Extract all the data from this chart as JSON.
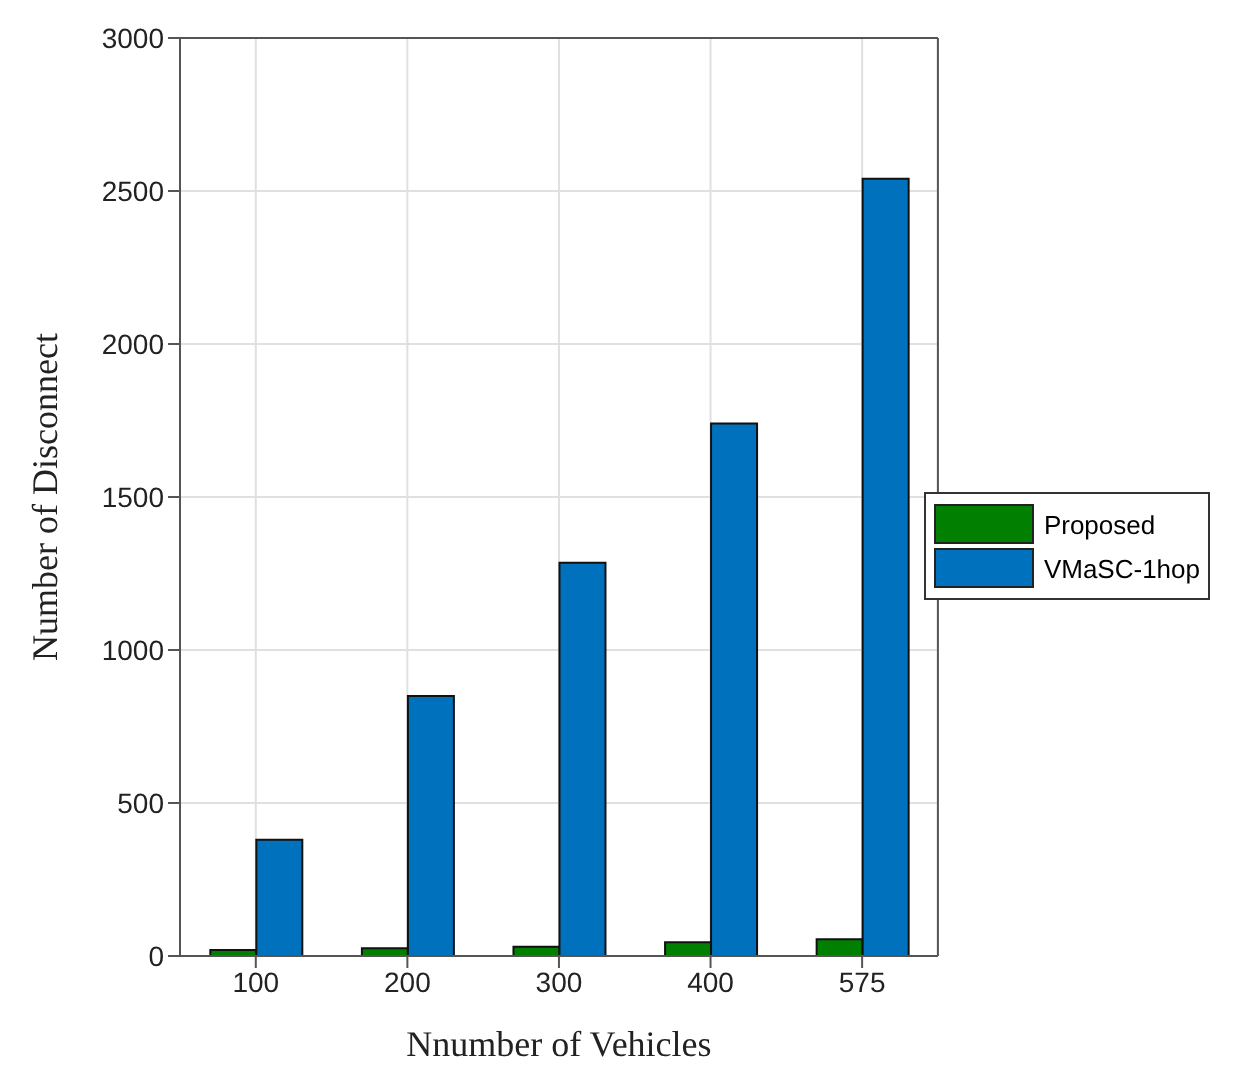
{
  "chart_data": {
    "type": "bar",
    "xlabel": "Nnumber of Vehicles",
    "ylabel": "Number of Disconnect",
    "categories": [
      "100",
      "200",
      "300",
      "400",
      "575"
    ],
    "series": [
      {
        "name": "Proposed",
        "color": "#007f00",
        "values": [
          20,
          25,
          30,
          45,
          55
        ]
      },
      {
        "name": "VMaSC-1hop",
        "color": "#0072bd",
        "values": [
          380,
          850,
          1285,
          1740,
          2540
        ]
      }
    ],
    "ylim": [
      0,
      3000
    ],
    "yticks": [
      0,
      500,
      1000,
      1500,
      2000,
      2500,
      3000
    ],
    "grid": true,
    "legend": "right"
  }
}
